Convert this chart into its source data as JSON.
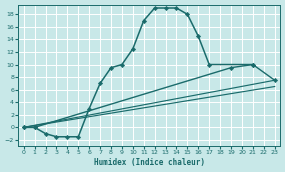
{
  "xlabel": "Humidex (Indice chaleur)",
  "bg_color": "#c8e8e8",
  "grid_color": "#ffffff",
  "line_color": "#1a6b6b",
  "xlim": [
    -0.5,
    23.5
  ],
  "ylim": [
    -3,
    19.5
  ],
  "xticks": [
    0,
    1,
    2,
    3,
    4,
    5,
    6,
    7,
    8,
    9,
    10,
    11,
    12,
    13,
    14,
    15,
    16,
    17,
    18,
    19,
    20,
    21,
    22,
    23
  ],
  "yticks": [
    -2,
    0,
    2,
    4,
    6,
    8,
    10,
    12,
    14,
    16,
    18
  ],
  "curve1_x": [
    0,
    1,
    2,
    3,
    4,
    5,
    6,
    7,
    8,
    9,
    10,
    11,
    12,
    13,
    14,
    15,
    16,
    17,
    21
  ],
  "curve1_y": [
    0,
    0,
    -1,
    -1.5,
    -1.5,
    -1.5,
    3,
    7,
    9.5,
    10,
    12.5,
    17,
    19,
    19,
    19,
    18,
    14.5,
    10,
    10
  ],
  "curve2_x": [
    0,
    1,
    19,
    21,
    23
  ],
  "curve2_y": [
    0,
    0,
    9.5,
    10,
    7.5
  ],
  "line1": [
    [
      0,
      23
    ],
    [
      0,
      7.5
    ]
  ],
  "line2": [
    [
      0,
      23
    ],
    [
      0,
      6.5
    ]
  ]
}
